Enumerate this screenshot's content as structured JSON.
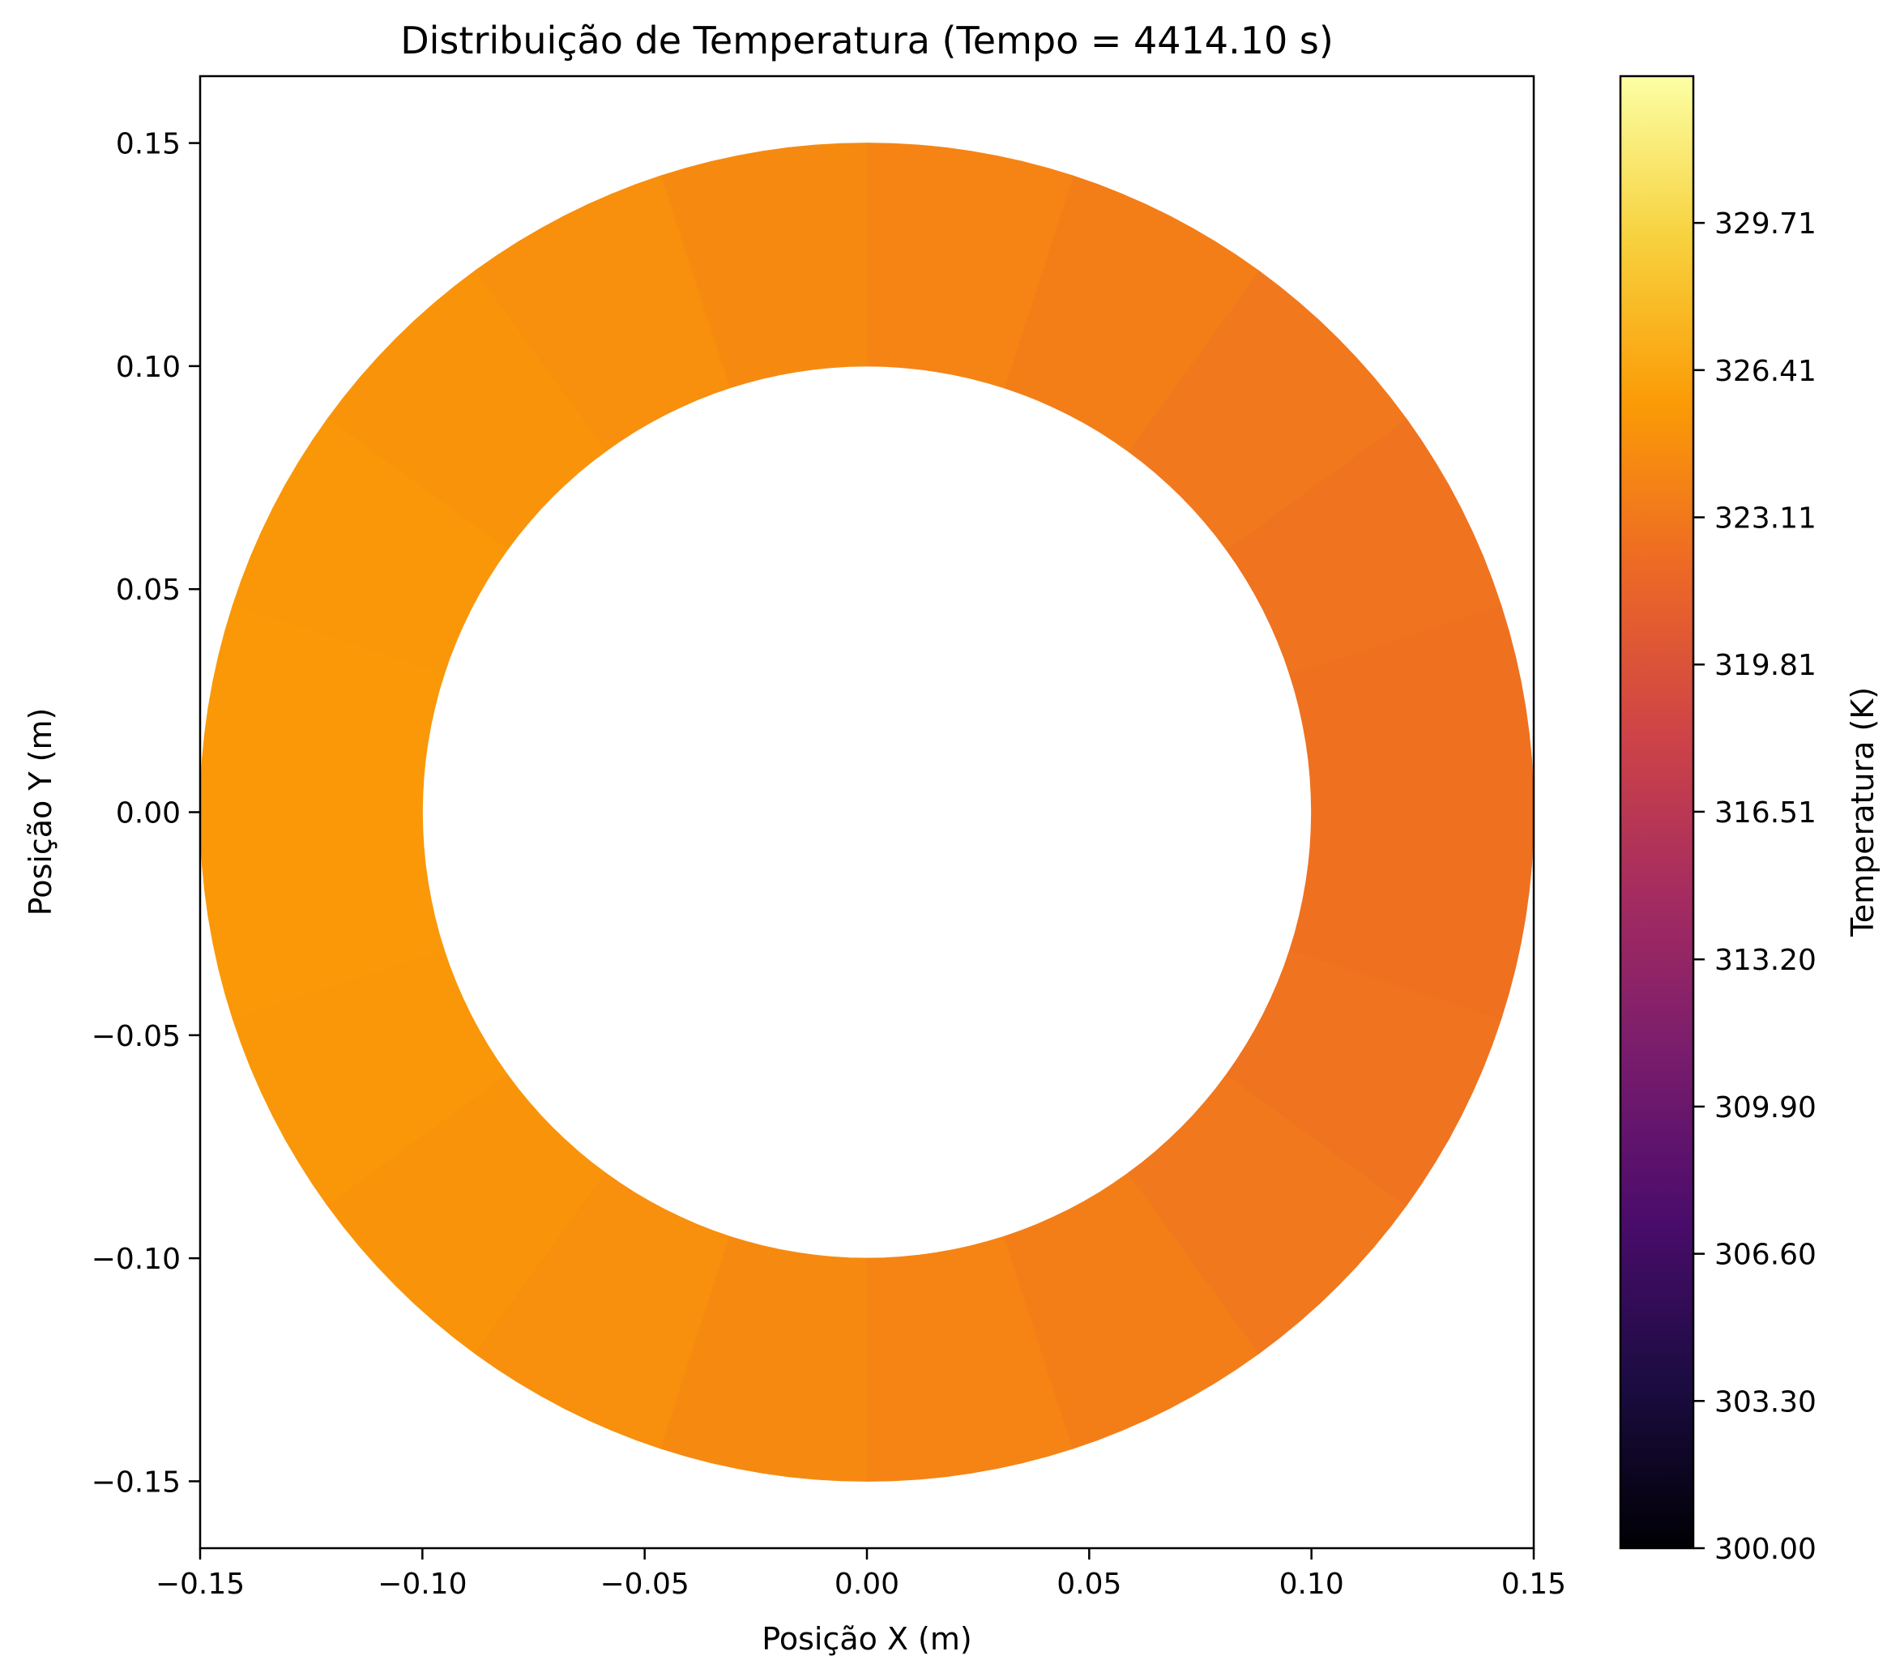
{
  "chart_data": {
    "type": "heatmap",
    "title": "Distribuição de Temperatura (Tempo = 4414.10 s)",
    "xlabel": "Posição X (m)",
    "ylabel": "Posição Y (m)",
    "xlim": [
      -0.15,
      0.15
    ],
    "ylim": [
      -0.165,
      0.165
    ],
    "x_ticks": [
      -0.15,
      -0.1,
      -0.05,
      0.0,
      0.05,
      0.1,
      0.15
    ],
    "x_tick_labels": [
      "−0.15",
      "−0.10",
      "−0.05",
      "0.00",
      "0.05",
      "0.10",
      "0.15"
    ],
    "y_ticks": [
      0.15,
      0.1,
      0.05,
      0.0,
      -0.05,
      -0.1,
      -0.15
    ],
    "y_tick_labels": [
      "0.15",
      "0.10",
      "0.05",
      "0.00",
      "−0.05",
      "−0.10",
      "−0.15"
    ],
    "domain": {
      "shape": "annulus",
      "inner_radius": 0.1,
      "outer_radius": 0.15
    },
    "segment_angles_deg": [
      -180,
      -162,
      -144,
      -126,
      -108,
      -90,
      -72,
      -54,
      -36,
      -18,
      0,
      18,
      36,
      54,
      72,
      90,
      108,
      126,
      144,
      162,
      180
    ],
    "segment_temperatures": [
      325.5,
      325.4,
      325.3,
      325.0,
      324.6,
      324.2,
      323.8,
      323.3,
      322.9,
      322.6,
      322.5,
      322.6,
      322.9,
      323.3,
      323.8,
      324.2,
      324.6,
      325.0,
      325.3,
      325.4,
      325.5
    ],
    "colorbar": {
      "label": "Temperatura (K)",
      "colormap": "inferno",
      "min": 300.0,
      "max": 333.0,
      "ticks": [
        300.0,
        303.3,
        306.6,
        309.9,
        313.2,
        316.51,
        319.81,
        323.11,
        326.41,
        329.71
      ],
      "tick_labels": [
        "300.00",
        "303.30",
        "306.60",
        "309.90",
        "313.20",
        "316.51",
        "319.81",
        "323.11",
        "326.41",
        "329.71"
      ],
      "stops": [
        "#000004",
        "#1b0c41",
        "#4a0c6b",
        "#781c6d",
        "#a52c60",
        "#cf4446",
        "#ed6925",
        "#fb9b06",
        "#f7d13d",
        "#fcffa4"
      ]
    }
  }
}
